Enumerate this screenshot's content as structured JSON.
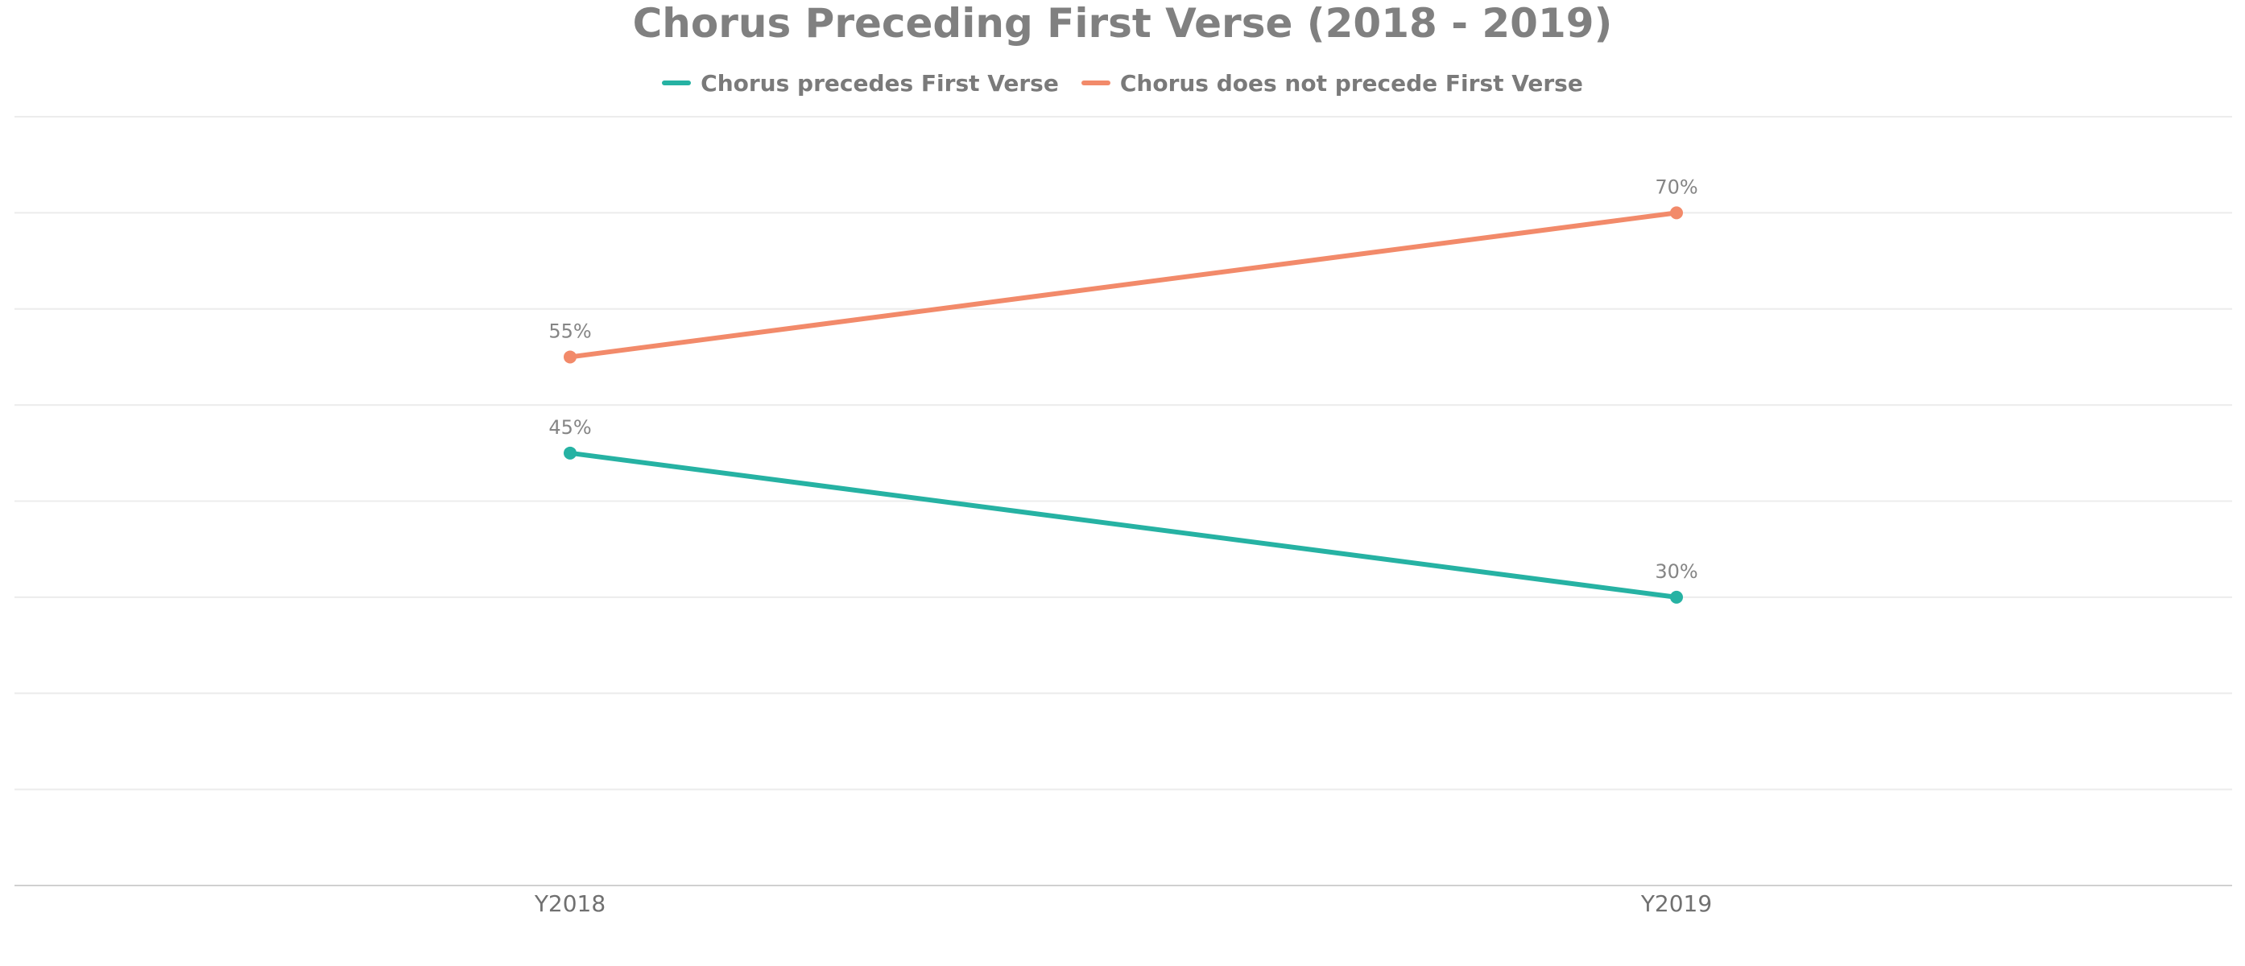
{
  "colors": {
    "series_1": "#26b2a3",
    "series_2": "#f28a6a",
    "grid": "#ececec",
    "text": "#808080"
  },
  "chart_data": {
    "type": "line",
    "title": "Chorus Preceding First Verse (2018 - 2019)",
    "xlabel": "",
    "ylabel": "",
    "categories": [
      "Y2018",
      "Y2019"
    ],
    "ylim": [
      0,
      80
    ],
    "grid": true,
    "legend_position": "top-center",
    "series": [
      {
        "name": "Chorus precedes First Verse",
        "values": [
          45,
          30
        ],
        "labels": [
          "45%",
          "30%"
        ],
        "color": "#26b2a3"
      },
      {
        "name": "Chorus does not precede First Verse",
        "values": [
          55,
          70
        ],
        "labels": [
          "55%",
          "70%"
        ],
        "color": "#f28a6a"
      }
    ]
  }
}
